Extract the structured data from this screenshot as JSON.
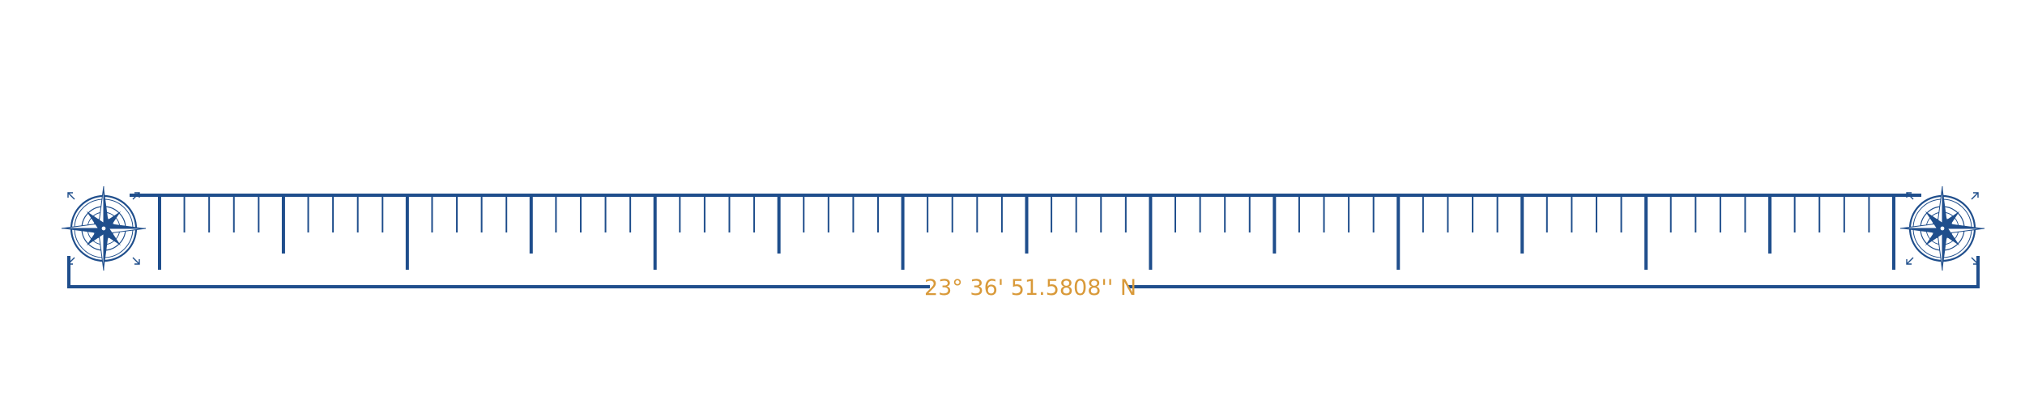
{
  "coordinate": {
    "label": "23° 36' 51.5808'' N"
  },
  "ruler": {
    "major_divisions": 14,
    "minor_ticks_per_division": 4
  },
  "icons": {
    "left": "compass-rose-icon",
    "right": "compass-rose-icon"
  },
  "colors": {
    "ruler": "#1f4e8c",
    "label": "#d99a3a",
    "background": "#ffffff"
  }
}
